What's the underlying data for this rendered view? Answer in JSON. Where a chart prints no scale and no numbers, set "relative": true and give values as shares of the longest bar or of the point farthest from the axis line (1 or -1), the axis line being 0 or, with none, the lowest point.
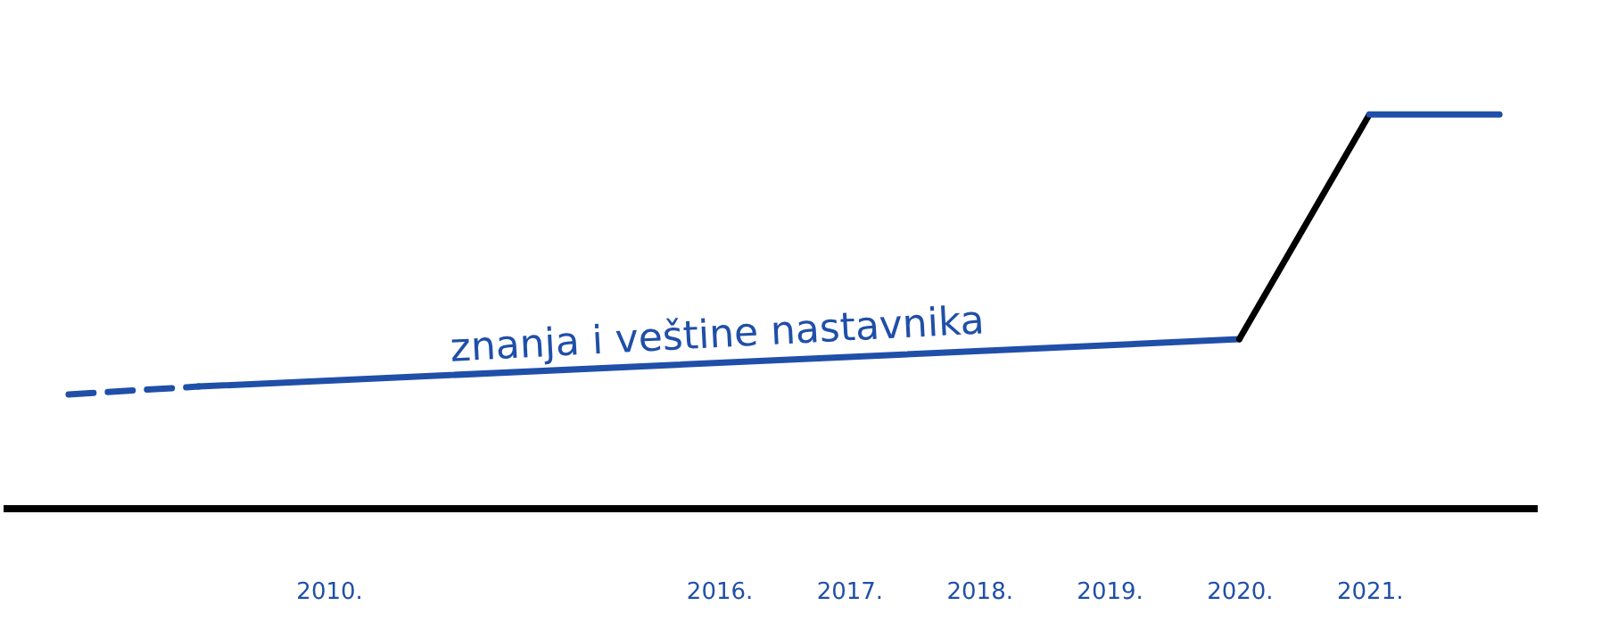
{
  "chart_data": {
    "type": "line",
    "relative": true,
    "categories": [
      null,
      null,
      "2010.",
      null,
      null,
      "2016.",
      "2017.",
      "2018.",
      "2019.",
      "2020.",
      "2021.",
      null
    ],
    "series": [
      {
        "color": "#1f4fa8",
        "line_style": "dashed",
        "values": [
          0.29,
          0.31,
          null,
          null,
          null,
          null,
          null,
          null,
          null,
          null,
          null,
          null
        ]
      },
      {
        "name": "znanja i veštine nastavnika",
        "color": "#1f4fa8",
        "line_style": "solid",
        "values": [
          null,
          0.31,
          null,
          null,
          null,
          null,
          null,
          null,
          null,
          0.43,
          null,
          null
        ]
      },
      {
        "color": "#000000",
        "line_style": "solid",
        "values": [
          null,
          null,
          null,
          null,
          null,
          null,
          null,
          null,
          null,
          0.43,
          1.0,
          null
        ]
      },
      {
        "color": "#1f4fa8",
        "line_style": "solid",
        "values": [
          null,
          null,
          null,
          null,
          null,
          null,
          null,
          null,
          null,
          null,
          1.0,
          1.0
        ]
      }
    ],
    "grid": false,
    "marker": "none"
  }
}
